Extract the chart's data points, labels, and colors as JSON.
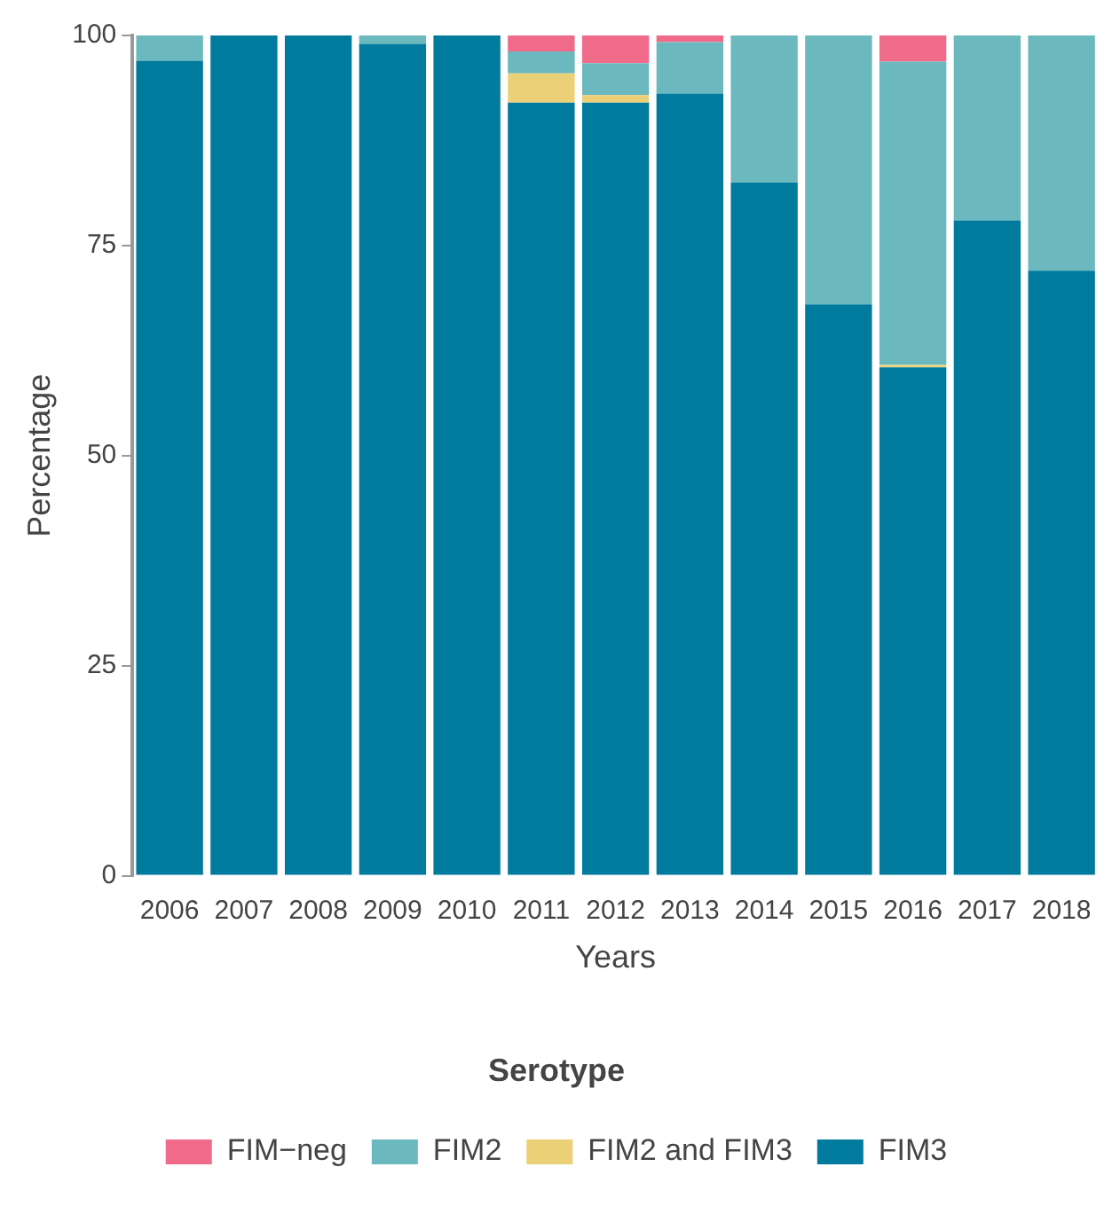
{
  "chart_data": {
    "type": "bar",
    "stacked": true,
    "xlabel": "Years",
    "ylabel": "Percentage",
    "legend_title": "Serotype",
    "legend": "bottom",
    "grid": false,
    "categories": [
      "2006",
      "2007",
      "2008",
      "2009",
      "2010",
      "2011",
      "2012",
      "2013",
      "2014",
      "2015",
      "2016",
      "2017",
      "2018"
    ],
    "ylim": [
      0,
      100
    ],
    "yticks": [
      0,
      25,
      50,
      75,
      100
    ],
    "series": [
      {
        "name": "FIM3",
        "color": "#007b9e",
        "values": [
          97,
          100,
          100,
          99,
          100,
          92,
          92,
          93.1,
          82.5,
          68,
          60.5,
          78,
          72
        ]
      },
      {
        "name": "FIM2 and FIM3",
        "color": "#ecd078",
        "values": [
          0,
          0,
          0,
          0,
          0,
          3.5,
          0.9,
          0,
          0,
          0,
          0.3,
          0,
          0
        ]
      },
      {
        "name": "FIM2",
        "color": "#6bb9be",
        "values": [
          3,
          0,
          0,
          1,
          0,
          2.6,
          3.8,
          6.1,
          17.5,
          32,
          36.1,
          22,
          28
        ]
      },
      {
        "name": "FIM−neg",
        "color": "#f06a8a",
        "values": [
          0,
          0,
          0,
          0,
          0,
          1.9,
          3.3,
          0.8,
          0,
          0,
          3.1,
          0,
          0
        ]
      }
    ]
  }
}
